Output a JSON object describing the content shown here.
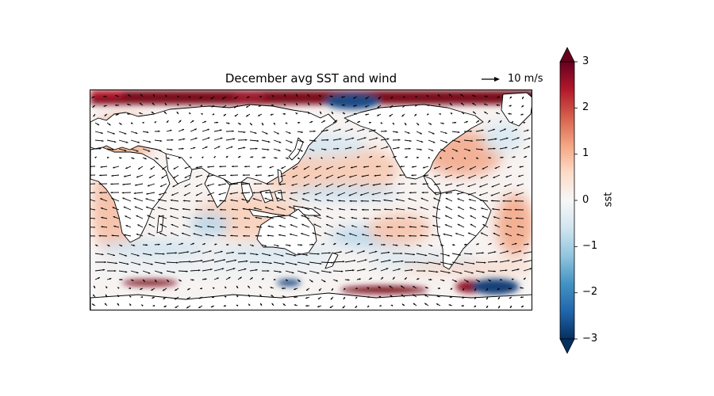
{
  "chart_data": {
    "type": "map",
    "title": "December avg SST and wind",
    "colorbar": {
      "label": "sst",
      "min": -3,
      "max": 3,
      "extend": "both",
      "ticks": [
        3,
        2,
        1,
        0,
        -1,
        -2,
        -3
      ],
      "tick_labels": [
        "3",
        "2",
        "1",
        "0",
        "−1",
        "−2",
        "−3"
      ],
      "colormap": [
        "#053061",
        "#2166ac",
        "#4393c3",
        "#92c5de",
        "#d1e5f0",
        "#f7f7f7",
        "#fddbc7",
        "#f4a582",
        "#d6604d",
        "#b2182b",
        "#67001f"
      ]
    },
    "quiver_key": {
      "label": "10 m/s",
      "value": 10
    }
  }
}
